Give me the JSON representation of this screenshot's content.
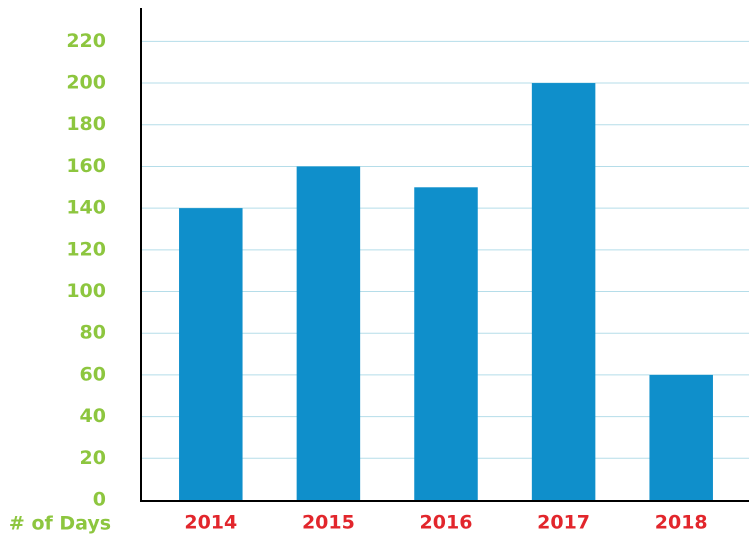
{
  "chart_data": {
    "type": "bar",
    "y_label": "# of Days",
    "categories": [
      "2014",
      "2015",
      "2016",
      "2017",
      "2018"
    ],
    "values": [
      140,
      160,
      150,
      200,
      60
    ],
    "color": "#0f8fcb",
    "ylim": [
      0,
      236
    ],
    "yticks": [
      0,
      20,
      40,
      60,
      80,
      100,
      120,
      140,
      160,
      180,
      200,
      220
    ],
    "grid": true
  }
}
